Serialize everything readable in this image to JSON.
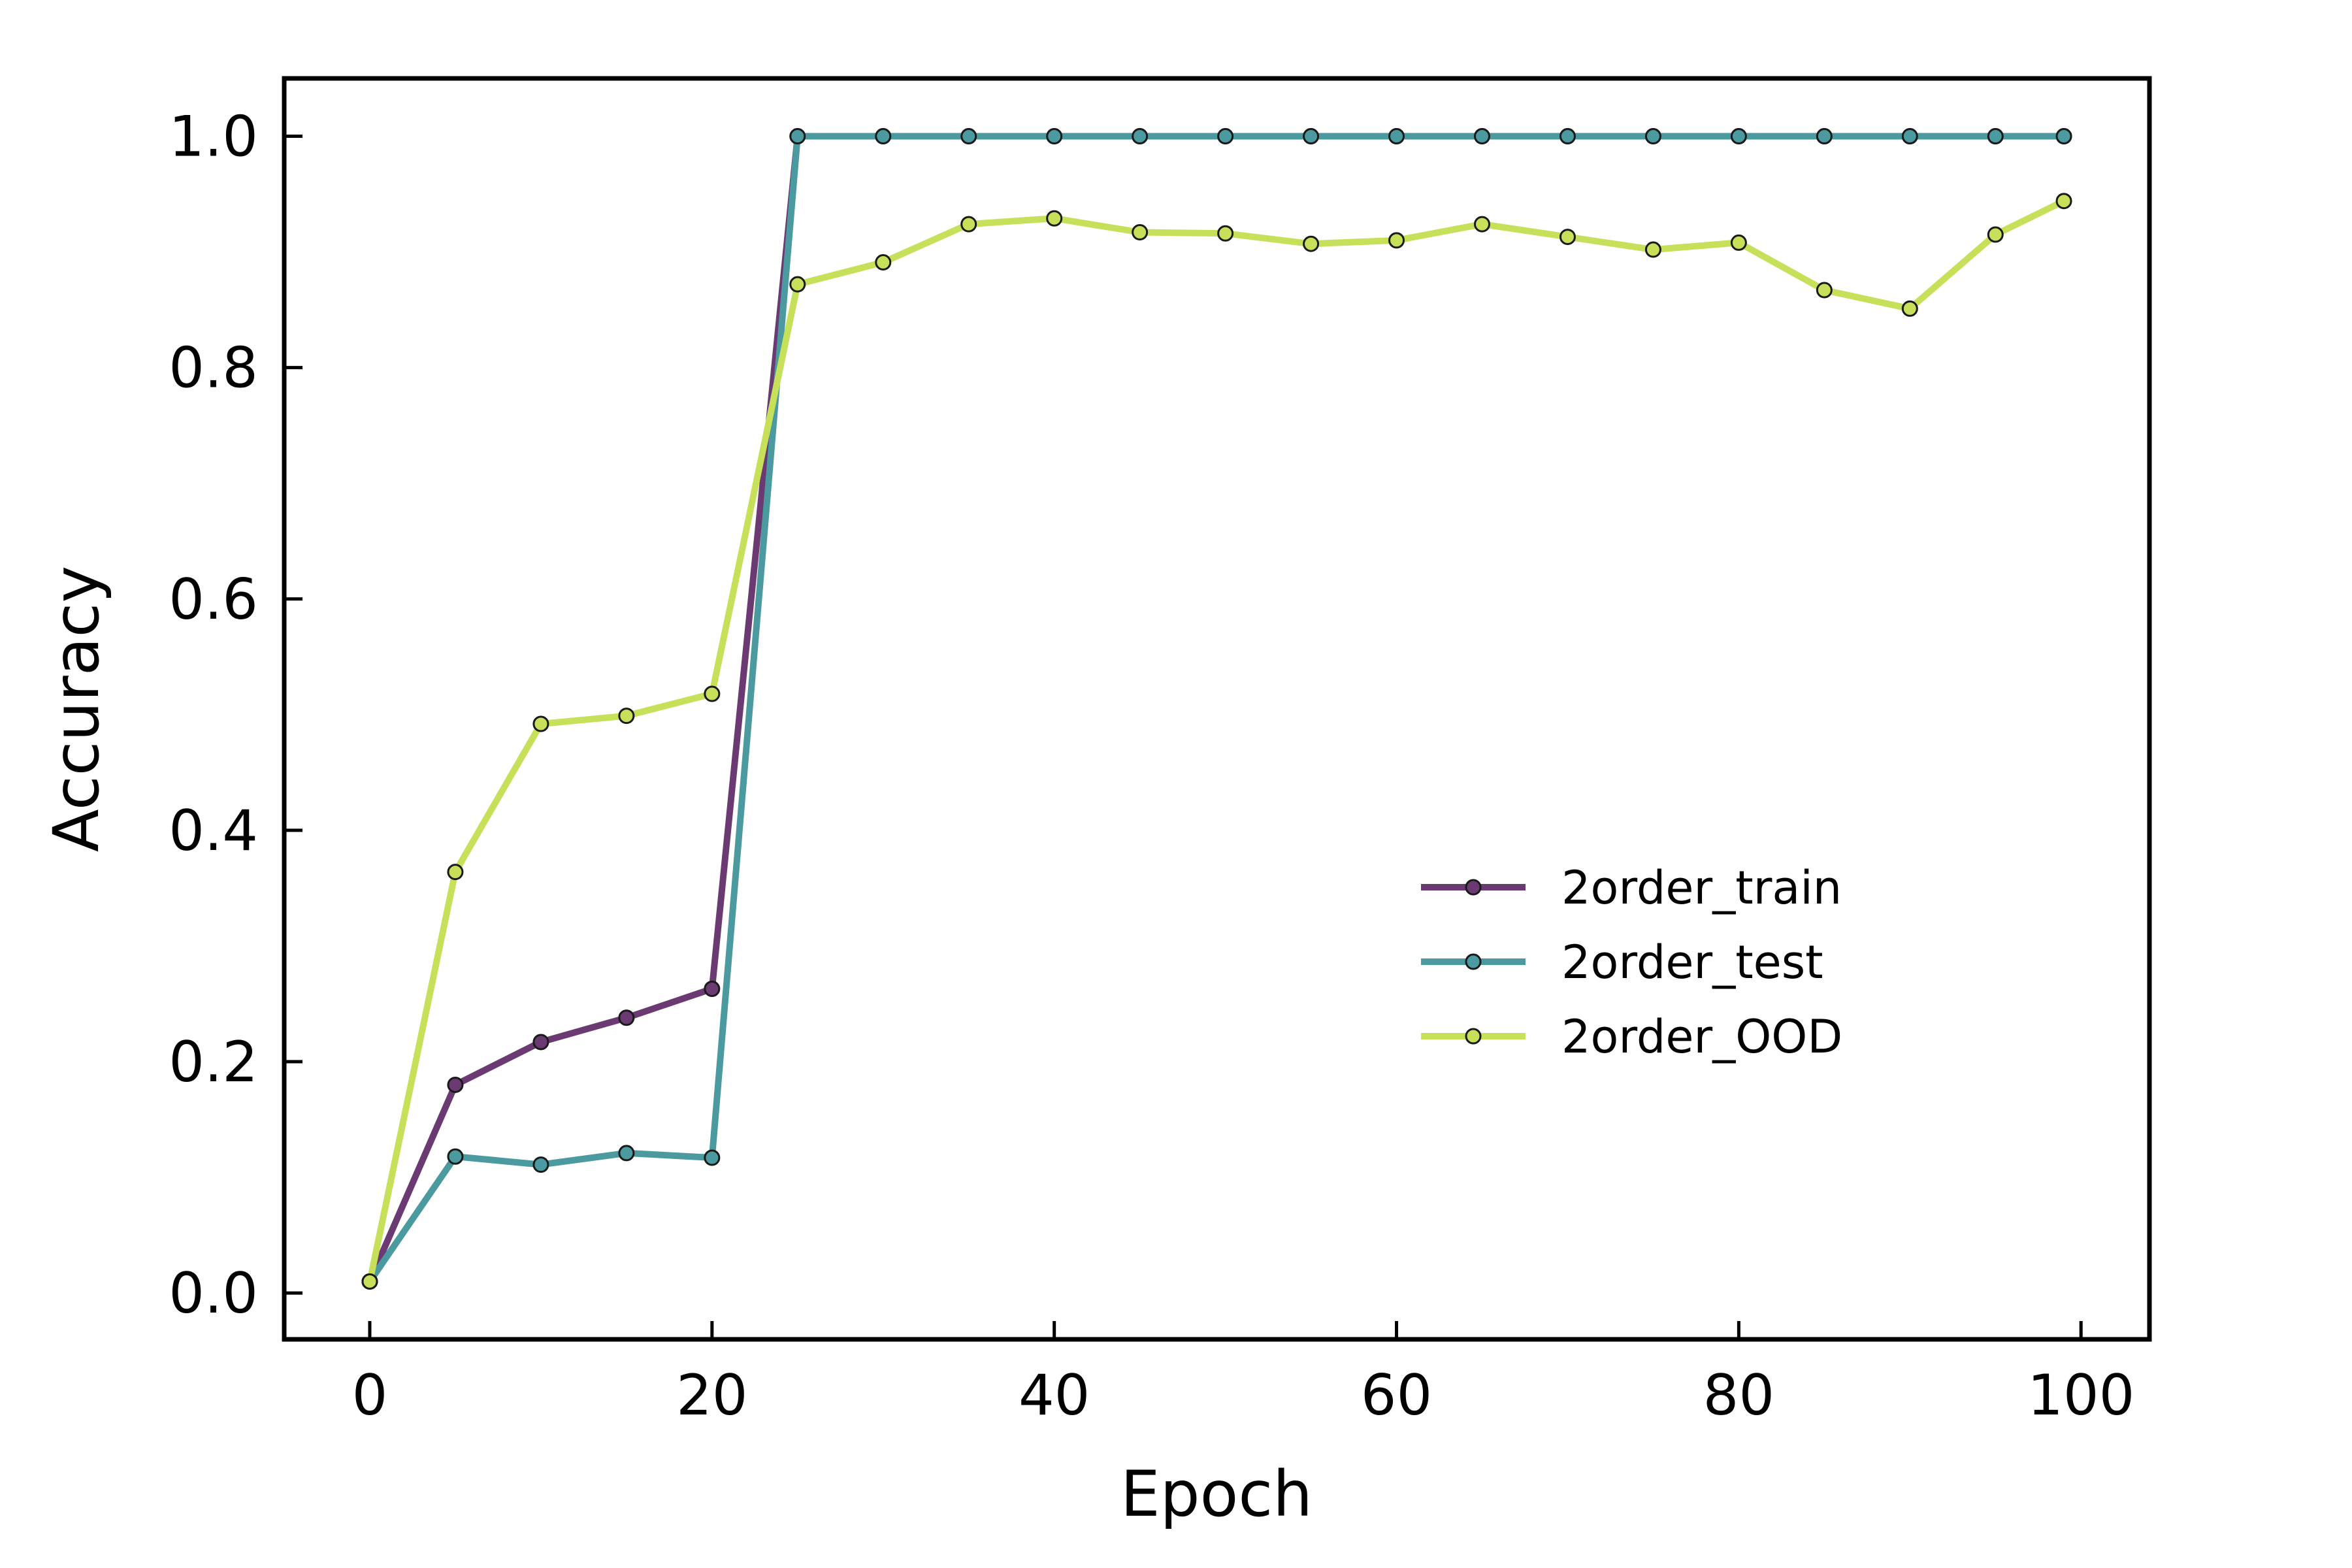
{
  "chart_data": {
    "type": "line",
    "title": "",
    "xlabel": "Epoch",
    "ylabel": "Accuracy",
    "xlim": [
      -5,
      104
    ],
    "ylim": [
      -0.04,
      1.05
    ],
    "xticks": [
      0,
      20,
      40,
      60,
      80,
      100
    ],
    "yticks": [
      0.0,
      0.2,
      0.4,
      0.6,
      0.8,
      1.0
    ],
    "xtick_labels": [
      "0",
      "20",
      "40",
      "60",
      "80",
      "100"
    ],
    "ytick_labels": [
      "0.0",
      "0.2",
      "0.4",
      "0.6",
      "0.8",
      "1.0"
    ],
    "grid": false,
    "legend_position": "center-right",
    "x": [
      0,
      5,
      10,
      15,
      20,
      25,
      30,
      35,
      40,
      45,
      50,
      55,
      60,
      65,
      70,
      75,
      80,
      85,
      90,
      95,
      99
    ],
    "series": [
      {
        "name": "2order_train",
        "color": "#6b3a73",
        "values": [
          0.01,
          0.18,
          0.217,
          0.238,
          0.263,
          1.0,
          1.0,
          1.0,
          1.0,
          1.0,
          1.0,
          1.0,
          1.0,
          1.0,
          1.0,
          1.0,
          1.0,
          1.0,
          1.0,
          1.0,
          1.0
        ]
      },
      {
        "name": "2order_test",
        "color": "#4a9aa0",
        "values": [
          0.01,
          0.118,
          0.111,
          0.121,
          0.117,
          1.0,
          1.0,
          1.0,
          1.0,
          1.0,
          1.0,
          1.0,
          1.0,
          1.0,
          1.0,
          1.0,
          1.0,
          1.0,
          1.0,
          1.0,
          1.0
        ]
      },
      {
        "name": "2order_OOD",
        "color": "#c6e05a",
        "values": [
          0.01,
          0.364,
          0.492,
          0.499,
          0.518,
          0.872,
          0.891,
          0.924,
          0.929,
          0.917,
          0.916,
          0.907,
          0.91,
          0.924,
          0.913,
          0.902,
          0.908,
          0.867,
          0.851,
          0.915,
          0.944
        ]
      }
    ]
  }
}
